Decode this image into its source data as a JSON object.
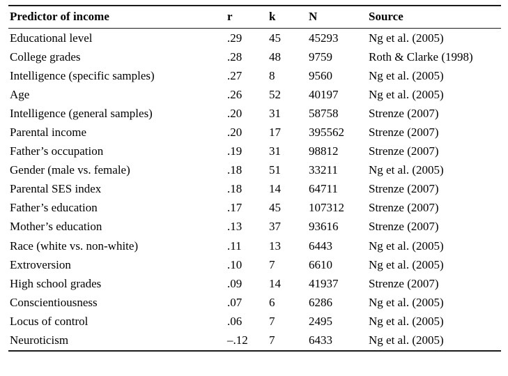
{
  "table": {
    "columns": [
      "Predictor of income",
      "r",
      "k",
      "N",
      "Source"
    ],
    "rows": [
      [
        "Educational level",
        ".29",
        "45",
        "45293",
        "Ng et al. (2005)"
      ],
      [
        "College grades",
        ".28",
        "48",
        "9759",
        "Roth & Clarke (1998)"
      ],
      [
        "Intelligence (specific samples)",
        ".27",
        "8",
        "9560",
        "Ng et al. (2005)"
      ],
      [
        "Age",
        ".26",
        "52",
        "40197",
        "Ng et al. (2005)"
      ],
      [
        "Intelligence (general samples)",
        ".20",
        "31",
        "58758",
        "Strenze (2007)"
      ],
      [
        "Parental income",
        ".20",
        "17",
        "395562",
        "Strenze (2007)"
      ],
      [
        "Father’s occupation",
        ".19",
        "31",
        "98812",
        "Strenze (2007)"
      ],
      [
        "Gender (male vs. female)",
        ".18",
        "51",
        "33211",
        "Ng et al. (2005)"
      ],
      [
        "Parental SES index",
        ".18",
        "14",
        "64711",
        "Strenze (2007)"
      ],
      [
        "Father’s education",
        ".17",
        "45",
        "107312",
        "Strenze (2007)"
      ],
      [
        "Mother’s education",
        ".13",
        "37",
        "93616",
        "Strenze (2007)"
      ],
      [
        "Race (white vs. non-white)",
        ".11",
        "13",
        "6443",
        "Ng et al. (2005)"
      ],
      [
        "Extroversion",
        ".10",
        "7",
        "6610",
        "Ng et al. (2005)"
      ],
      [
        "High school grades",
        ".09",
        "14",
        "41937",
        "Strenze (2007)"
      ],
      [
        "Conscientiousness",
        ".07",
        "6",
        "6286",
        "Ng et al. (2005)"
      ],
      [
        "Locus of control",
        ".06",
        "7",
        "2495",
        "Ng et al. (2005)"
      ],
      [
        "Neuroticism",
        "–.12",
        "7",
        "6433",
        "Ng et al. (2005)"
      ]
    ]
  }
}
